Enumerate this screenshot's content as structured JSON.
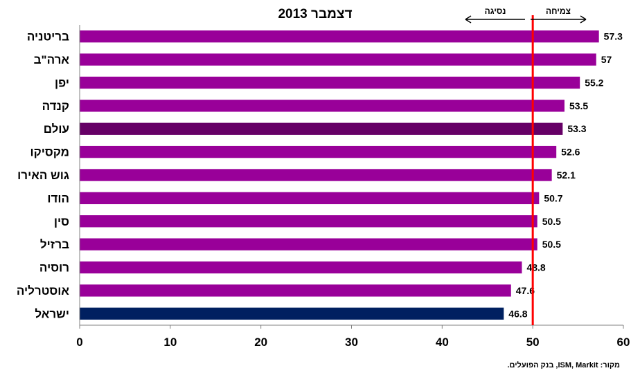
{
  "chart_data": {
    "type": "bar",
    "orientation": "horizontal",
    "title": "דצמבר 2013",
    "categories": [
      "בריטניה",
      "ארה\"ב",
      "יפן",
      "קנדה",
      "עולם",
      "מקסיקו",
      "גוש האירו",
      "הודו",
      "סין",
      "ברזיל",
      "רוסיה",
      "אוסטרליה",
      "ישראל"
    ],
    "values": [
      57.3,
      57,
      55.2,
      53.5,
      53.3,
      52.6,
      52.1,
      50.7,
      50.5,
      50.5,
      48.8,
      47.6,
      46.8
    ],
    "value_labels": [
      "57.3",
      "57",
      "55.2",
      "53.5",
      "53.3",
      "52.6",
      "52.1",
      "50.7",
      "50.5",
      "50.5",
      "48.8",
      "47.6",
      "46.8"
    ],
    "xlim": [
      0,
      60
    ],
    "xticks": [
      "0",
      "10",
      "20",
      "30",
      "40",
      "50",
      "60"
    ],
    "reference_line": 50,
    "annotations": {
      "growth": "צמיחה",
      "contraction": "נסיגה"
    },
    "colors": {
      "default": "#990099",
      "world": "#660066",
      "israel": "#002060",
      "reference_line": "#ff0000"
    },
    "grid": false
  },
  "source": "מקור: ISM, Markit, בנק הפועלים."
}
